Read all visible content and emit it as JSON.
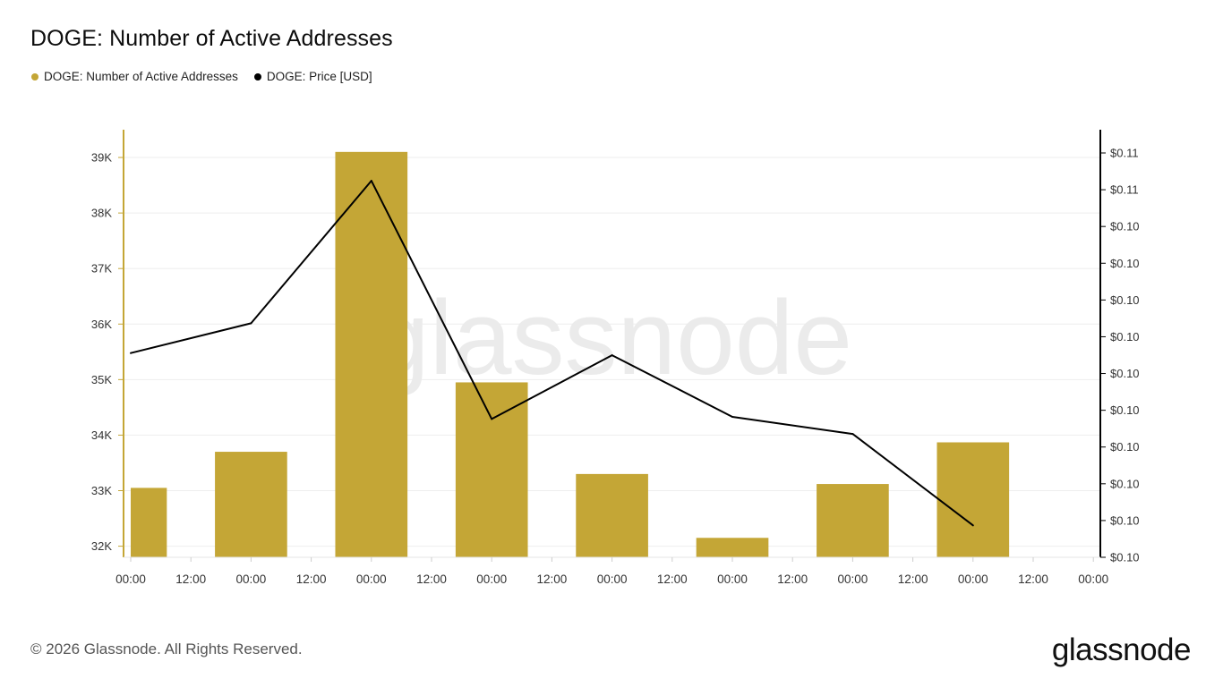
{
  "chart_data": {
    "type": "bar",
    "title": "DOGE: Number of Active Addresses",
    "watermark": "glassnode",
    "x_tick_labels": [
      "00:00",
      "12:00",
      "00:00",
      "12:00",
      "00:00",
      "12:00",
      "00:00",
      "12:00",
      "00:00",
      "12:00",
      "00:00",
      "12:00",
      "00:00",
      "12:00",
      "00:00",
      "12:00",
      "00:00"
    ],
    "y_left_ticks": [
      "32K",
      "33K",
      "34K",
      "35K",
      "36K",
      "37K",
      "38K",
      "39K"
    ],
    "y_left_tick_values": [
      32000,
      33000,
      34000,
      35000,
      36000,
      37000,
      38000,
      39000
    ],
    "y_right_ticks": [
      "$0.10",
      "$0.10",
      "$0.10",
      "$0.10",
      "$0.10",
      "$0.10",
      "$0.10",
      "$0.10",
      "$0.10",
      "$0.10",
      "$0.11",
      "$0.11"
    ],
    "ylim_left": [
      31800,
      39500
    ],
    "grid": true,
    "legend_placement": "top-left",
    "series": [
      {
        "name": "DOGE: Number of Active Addresses",
        "type": "bar",
        "axis": "left",
        "color": "#c4a636",
        "values": [
          33050,
          33700,
          39100,
          34950,
          33300,
          32150,
          33120,
          33870
        ]
      },
      {
        "name": "DOGE: Price [USD]",
        "type": "line",
        "axis": "right",
        "color": "#000000",
        "values": [
          0.1018,
          0.1032,
          0.1099,
          0.0987,
          0.1017,
          0.0988,
          0.098,
          0.0937
        ]
      }
    ],
    "bar_periods_start_tick": [
      0,
      2,
      4,
      6,
      8,
      10,
      12,
      14
    ],
    "ylim_right": [
      0.0922,
      0.1123
    ]
  },
  "footer": {
    "copyright": "© 2026 Glassnode. All Rights Reserved.",
    "brand": "glassnode"
  }
}
